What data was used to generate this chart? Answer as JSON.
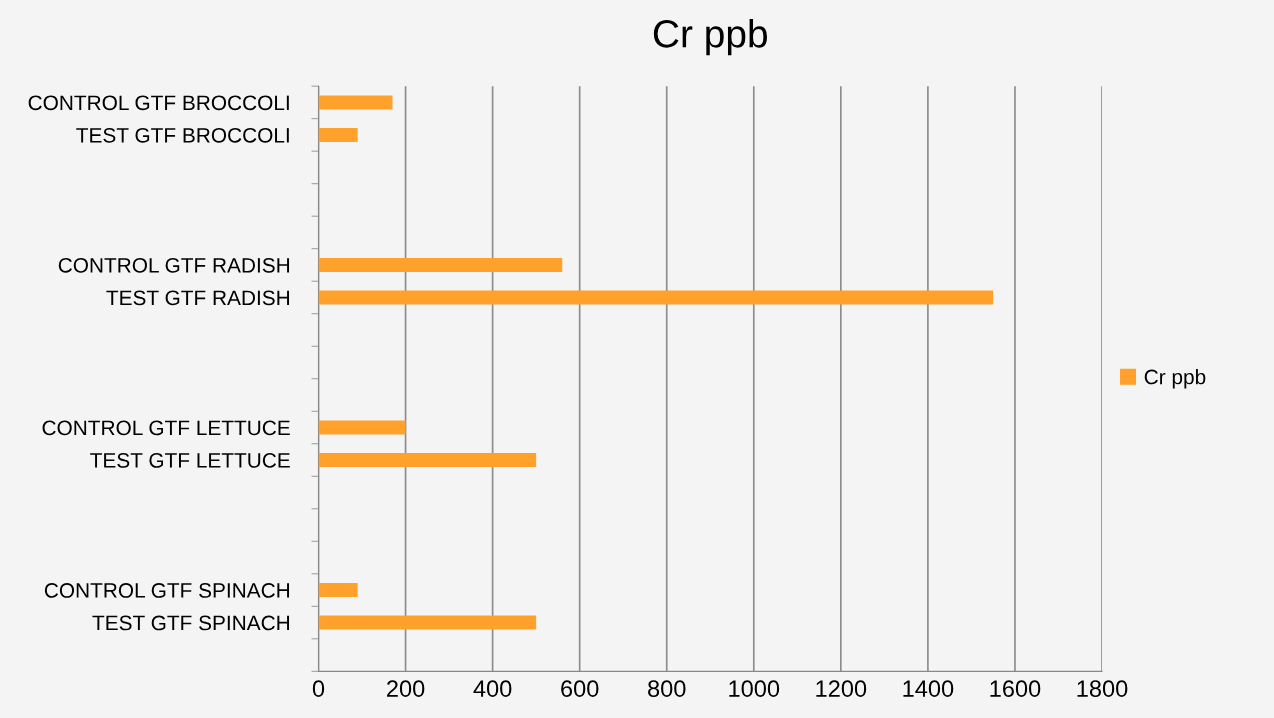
{
  "chart_data": {
    "type": "bar",
    "orientation": "horizontal",
    "title": "Cr ppb",
    "categories": [
      "CONTROL GTF BROCCOLI",
      "TEST GTF BROCCOLI",
      null,
      null,
      null,
      "CONTROL GTF RADISH",
      "TEST GTF RADISH",
      null,
      null,
      null,
      "CONTROL GTF LETTUCE",
      "TEST GTF LETTUCE",
      null,
      null,
      null,
      "CONTROL GTF SPINACH",
      "TEST GTF SPINACH",
      null
    ],
    "series": [
      {
        "name": "Cr ppb",
        "color": "#ffa12b",
        "values": [
          170,
          90,
          null,
          null,
          null,
          560,
          1550,
          null,
          null,
          null,
          200,
          500,
          null,
          null,
          null,
          90,
          500,
          null
        ]
      }
    ],
    "xlim": [
      0,
      1800
    ],
    "xticks": [
      0,
      200,
      400,
      600,
      800,
      1000,
      1200,
      1400,
      1600,
      1800
    ],
    "grid": "x",
    "legend": "right"
  }
}
